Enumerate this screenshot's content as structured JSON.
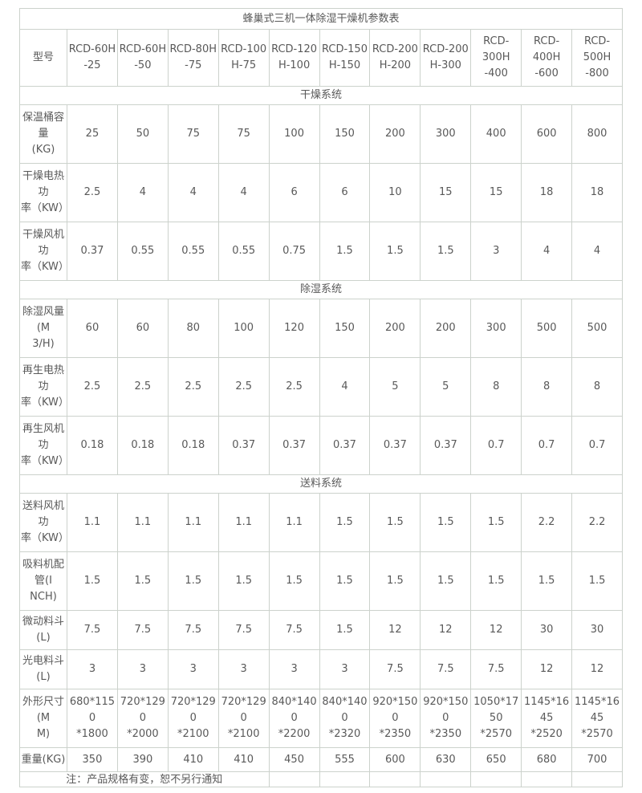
{
  "table": {
    "title": "蜂巢式三机一体除湿干燥机参数表",
    "header_label": "型号",
    "models": [
      "RCD-60H\n-25",
      "RCD-60H\n-50",
      "RCD-80H\n-75",
      "RCD-100\nH-75",
      "RCD-120\nH-100",
      "RCD-150\nH-150",
      "RCD-200\nH-200",
      "RCD-200\nH-300",
      "RCD-300H\n-400",
      "RCD-400H\n-600",
      "RCD-500H\n-800"
    ],
    "sections": [
      {
        "name": "干燥系统",
        "rows": [
          {
            "label": "保温桶容量\n(KG)",
            "values": [
              "25",
              "50",
              "75",
              "75",
              "100",
              "150",
              "200",
              "300",
              "400",
              "600",
              "800"
            ]
          },
          {
            "label": "干燥电热功\n率（KW）",
            "values": [
              "2.5",
              "4",
              "4",
              "4",
              "6",
              "6",
              "10",
              "15",
              "15",
              "18",
              "18"
            ]
          },
          {
            "label": "干燥风机功\n率（KW）",
            "values": [
              "0.37",
              "0.55",
              "0.55",
              "0.55",
              "0.75",
              "1.5",
              "1.5",
              "1.5",
              "3",
              "4",
              "4"
            ]
          }
        ]
      },
      {
        "name": "除湿系统",
        "rows": [
          {
            "label": "除湿风量(M\n3/H)",
            "values": [
              "60",
              "60",
              "80",
              "100",
              "120",
              "150",
              "200",
              "200",
              "300",
              "500",
              "500"
            ]
          },
          {
            "label": "再生电热功\n率（KW）",
            "values": [
              "2.5",
              "2.5",
              "2.5",
              "2.5",
              "2.5",
              "4",
              "5",
              "5",
              "8",
              "8",
              "8"
            ]
          },
          {
            "label": "再生风机功\n率（KW）",
            "values": [
              "0.18",
              "0.18",
              "0.18",
              "0.37",
              "0.37",
              "0.37",
              "0.37",
              "0.37",
              "0.7",
              "0.7",
              "0.7"
            ]
          }
        ]
      },
      {
        "name": "送料系统",
        "rows": [
          {
            "label": "送料风机功\n率（KW）",
            "values": [
              "1.1",
              "1.1",
              "1.1",
              "1.1",
              "1.1",
              "1.5",
              "1.5",
              "1.5",
              "1.5",
              "2.2",
              "2.2"
            ]
          },
          {
            "label": "吸料机配管(I\nNCH)",
            "values": [
              "1.5",
              "1.5",
              "1.5",
              "1.5",
              "1.5",
              "1.5",
              "1.5",
              "1.5",
              "1.5",
              "1.5",
              "1.5"
            ]
          },
          {
            "label": "微动料斗(L)",
            "values": [
              "7.5",
              "7.5",
              "7.5",
              "7.5",
              "7.5",
              "1.5",
              "12",
              "12",
              "12",
              "30",
              "30"
            ]
          },
          {
            "label": "光电料斗(L)",
            "values": [
              "3",
              "3",
              "3",
              "3",
              "3",
              "3",
              "7.5",
              "7.5",
              "7.5",
              "12",
              "12"
            ]
          },
          {
            "label": "外形尺寸(M\nM)",
            "values": [
              "680*1150\n*1800",
              "720*1290\n*2000",
              "720*1290\n*2100",
              "720*1290\n*2100",
              "840*1400\n*2200",
              "840*1400\n*2320",
              "920*1500\n*2350",
              "920*1500\n*2350",
              "1050*1750\n*2570",
              "1145*1645\n*2520",
              "1145*1645\n*2570"
            ]
          },
          {
            "label": "重量(KG)",
            "values": [
              "350",
              "390",
              "410",
              "410",
              "450",
              "555",
              "600",
              "630",
              "650",
              "680",
              "700"
            ]
          }
        ]
      }
    ],
    "note": "注：产品规格有变，恕不另行通知",
    "colors": {
      "border": "#ccd2cc",
      "text": "#595959",
      "background": "#ffffff"
    }
  }
}
